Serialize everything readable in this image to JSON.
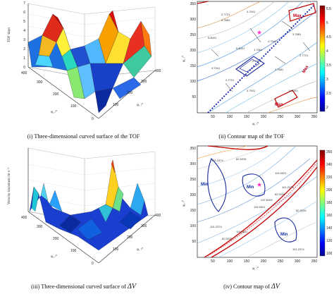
{
  "captions": {
    "p1": "(i) Three-dimensional curved surface of the TOF",
    "p2": "(ii) Contour map of the TOF",
    "p3": "(iii) Three-dimensional curved surface of",
    "p3_symbol": "ΔV",
    "p4": "(iv) Contour map of"
  },
  "panel1": {
    "zlabel": "TOF /days",
    "xlabel": "φ₂ /°",
    "ylabel": "φ₁ /°",
    "zticks": [
      "0",
      "1",
      "2",
      "3",
      "4",
      "5",
      "6",
      "7"
    ],
    "xticks": [
      "0",
      "100",
      "200",
      "300",
      "400"
    ],
    "yticks": [
      "100",
      "200",
      "300",
      "400"
    ]
  },
  "panel2": {
    "ylabel": "φ₂ /°",
    "xlabel": "φ₁ /°",
    "yticks": [
      "50",
      "100",
      "150",
      "200",
      "250",
      "300",
      "350"
    ],
    "xticks": [
      "50",
      "100",
      "150",
      "200",
      "250",
      "300",
      "350"
    ],
    "colorbar_ticks": [
      "2",
      "2.5",
      "3",
      "3.5",
      "4",
      "4.5",
      "5",
      "5.5"
    ],
    "labels": {
      "max_a": "Max",
      "max_b": "Max",
      "max_c": "Max",
      "c1": "2.7721",
      "c2": "3.7881",
      "c3": "4.7941",
      "c4": "5.8001",
      "c5": "1.7661",
      "c6": "2.7721",
      "c7": "3.7881",
      "c8": "4.7941",
      "c9": "5.8001",
      "c10": "2.7721",
      "c11": "4.7941",
      "c12": "5.8001",
      "c13": "3.7881",
      "c14": "2.7721",
      "c15": "4.7941"
    }
  },
  "panel3": {
    "zlabel": "Velocity increment /m·s⁻¹",
    "xlabel": "φ₂ /°",
    "ylabel": "φ₁ /°",
    "xticks": [
      "0",
      "100",
      "200",
      "300",
      "400"
    ],
    "yticks": [
      "100",
      "200",
      "300",
      "400"
    ]
  },
  "panel4": {
    "ylabel": "φ₂ /°",
    "xlabel": "φ₁ /°",
    "yticks": [
      "50",
      "100",
      "150",
      "200",
      "250",
      "300",
      "350"
    ],
    "xticks": [
      "50",
      "100",
      "150",
      "200",
      "250",
      "300",
      "350"
    ],
    "colorbar_ticks": [
      "100",
      "120",
      "140",
      "160",
      "180",
      "200",
      "220",
      "240",
      "260"
    ],
    "labels": {
      "min_a": "Min",
      "min_b": "Min",
      "min_c": "Min",
      "c1": "101.2374",
      "c2": "82.9226",
      "c3": "119.5021",
      "c4": "101.2374",
      "c5": "82.9226",
      "c6": "119.5021",
      "c7": "137.8169",
      "c8": "101.2374",
      "c9": "82.9226",
      "c10": "119.5021",
      "c11": "101.2374",
      "c12": "82.9226"
    }
  }
}
